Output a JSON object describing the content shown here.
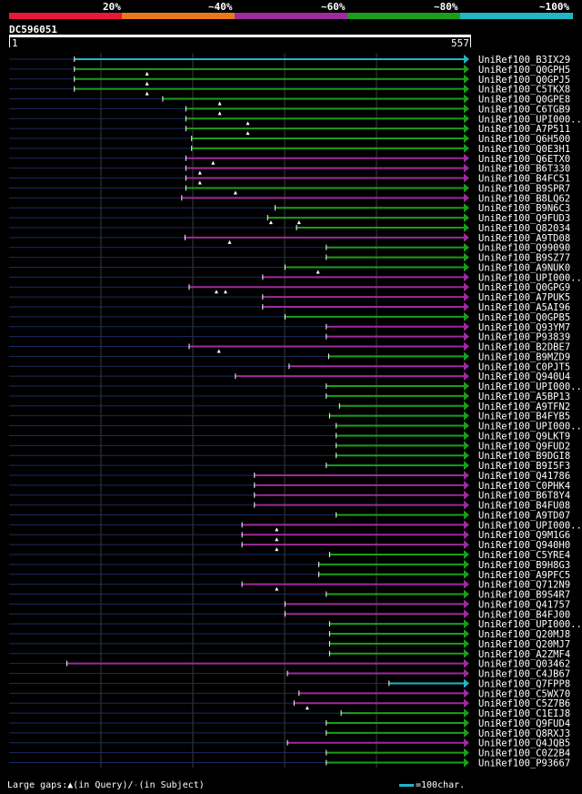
{
  "query_id": "DC596051",
  "legend": {
    "labels": [
      "20%",
      "~40%",
      "~60%",
      "~80%",
      "~100%"
    ],
    "colors": [
      "#e8183c",
      "#e8791b",
      "#9c2b9c",
      "#1a9e1a",
      "#21b6c4"
    ]
  },
  "ruler": {
    "start_label": "1",
    "end_label": "557"
  },
  "footer": {
    "large_gaps_label": "Large gaps:",
    "query_marker_label": "(in Query)/",
    "subject_marker_label": "(in Subject)",
    "scale_label": "=100char."
  },
  "chart_data": {
    "type": "alignment_coverage",
    "query_length": 557,
    "x_range": [
      1,
      557
    ],
    "hits": [
      {
        "label": "UniRef100_B3IX29",
        "start": 80,
        "end": 557,
        "color": "#21b6c4"
      },
      {
        "label": "UniRef100_Q0GPH5",
        "start": 80,
        "end": 557,
        "color": "#1a9e1a"
      },
      {
        "label": "UniRef100_Q0GPJ5",
        "start": 80,
        "end": 557,
        "color": "#1a9e1a"
      },
      {
        "label": "UniRef100_C5TKX8",
        "start": 80,
        "end": 557,
        "color": "#1a9e1a"
      },
      {
        "label": "UniRef100_Q0GPE8",
        "start": 187,
        "end": 557,
        "color": "#1a9e1a"
      },
      {
        "label": "UniRef100_C6TGB9",
        "start": 215,
        "end": 557,
        "color": "#1a9e1a"
      },
      {
        "label": "UniRef100_UPI000..",
        "start": 215,
        "end": 557,
        "color": "#1a9e1a"
      },
      {
        "label": "UniRef100_A7P511",
        "start": 215,
        "end": 557,
        "color": "#1a9e1a"
      },
      {
        "label": "UniRef100_Q6H500",
        "start": 222,
        "end": 557,
        "color": "#1a9e1a"
      },
      {
        "label": "UniRef100_Q0E3H1",
        "start": 222,
        "end": 557,
        "color": "#1a9e1a"
      },
      {
        "label": "UniRef100_Q6ETX0",
        "start": 215,
        "end": 557,
        "color": "#9c2b9c"
      },
      {
        "label": "UniRef100_B6T330",
        "start": 215,
        "end": 557,
        "color": "#9c2b9c"
      },
      {
        "label": "UniRef100_B4FC51",
        "start": 215,
        "end": 557,
        "color": "#9c2b9c"
      },
      {
        "label": "UniRef100_B9SPR7",
        "start": 215,
        "end": 557,
        "color": "#1a9e1a"
      },
      {
        "label": "UniRef100_B8LQ62",
        "start": 210,
        "end": 557,
        "color": "#9c2b9c"
      },
      {
        "label": "UniRef100_B9N6C3",
        "start": 323,
        "end": 557,
        "color": "#1a9e1a"
      },
      {
        "label": "UniRef100_Q9FUD3",
        "start": 314,
        "end": 557,
        "color": "#1a9e1a"
      },
      {
        "label": "UniRef100_Q82034",
        "start": 349,
        "end": 557,
        "color": "#1a9e1a"
      },
      {
        "label": "UniRef100_A9TD08",
        "start": 214,
        "end": 557,
        "color": "#9c2b9c"
      },
      {
        "label": "UniRef100_Q99090",
        "start": 385,
        "end": 557,
        "color": "#1a9e1a"
      },
      {
        "label": "UniRef100_B9SZ77",
        "start": 385,
        "end": 557,
        "color": "#1a9e1a"
      },
      {
        "label": "UniRef100_A9NUK0",
        "start": 335,
        "end": 557,
        "color": "#1a9e1a"
      },
      {
        "label": "UniRef100_UPI000..",
        "start": 308,
        "end": 557,
        "color": "#9c2b9c"
      },
      {
        "label": "UniRef100_Q0GPG9",
        "start": 219,
        "end": 557,
        "color": "#9c2b9c"
      },
      {
        "label": "UniRef100_A7PUK5",
        "start": 308,
        "end": 557,
        "color": "#9c2b9c"
      },
      {
        "label": "UniRef100_A5AI96",
        "start": 308,
        "end": 557,
        "color": "#9c2b9c"
      },
      {
        "label": "UniRef100_Q0GPB5",
        "start": 335,
        "end": 557,
        "color": "#1a9e1a"
      },
      {
        "label": "UniRef100_Q93YM7",
        "start": 385,
        "end": 557,
        "color": "#9c2b9c"
      },
      {
        "label": "UniRef100_P93839",
        "start": 385,
        "end": 557,
        "color": "#9c2b9c"
      },
      {
        "label": "UniRef100_B2DBE7",
        "start": 219,
        "end": 557,
        "color": "#9c2b9c"
      },
      {
        "label": "UniRef100_B9MZD9",
        "start": 388,
        "end": 557,
        "color": "#1a9e1a"
      },
      {
        "label": "UniRef100_C0PJT5",
        "start": 340,
        "end": 557,
        "color": "#9c2b9c"
      },
      {
        "label": "UniRef100_Q940U4",
        "start": 275,
        "end": 557,
        "color": "#9c2b9c"
      },
      {
        "label": "UniRef100_UPI000..",
        "start": 385,
        "end": 557,
        "color": "#1a9e1a"
      },
      {
        "label": "UniRef100_A5BP13",
        "start": 385,
        "end": 557,
        "color": "#1a9e1a"
      },
      {
        "label": "UniRef100_A9TFN2",
        "start": 401,
        "end": 557,
        "color": "#1a9e1a"
      },
      {
        "label": "UniRef100_B4FYB5",
        "start": 389,
        "end": 557,
        "color": "#1a9e1a"
      },
      {
        "label": "UniRef100_UPI000..",
        "start": 397,
        "end": 557,
        "color": "#1a9e1a"
      },
      {
        "label": "UniRef100_Q9LKT9",
        "start": 397,
        "end": 557,
        "color": "#1a9e1a"
      },
      {
        "label": "UniRef100_Q9FUD2",
        "start": 397,
        "end": 557,
        "color": "#1a9e1a"
      },
      {
        "label": "UniRef100_B9DGI8",
        "start": 397,
        "end": 557,
        "color": "#1a9e1a"
      },
      {
        "label": "UniRef100_B9I5F3",
        "start": 385,
        "end": 557,
        "color": "#1a9e1a"
      },
      {
        "label": "UniRef100_Q41786",
        "start": 298,
        "end": 557,
        "color": "#9c2b9c"
      },
      {
        "label": "UniRef100_C0PHK4",
        "start": 298,
        "end": 557,
        "color": "#9c2b9c"
      },
      {
        "label": "UniRef100_B6T8Y4",
        "start": 298,
        "end": 557,
        "color": "#9c2b9c"
      },
      {
        "label": "UniRef100_B4FU08",
        "start": 298,
        "end": 557,
        "color": "#9c2b9c"
      },
      {
        "label": "UniRef100_A9TD07",
        "start": 397,
        "end": 557,
        "color": "#1a9e1a"
      },
      {
        "label": "UniRef100_UPI000..",
        "start": 283,
        "end": 557,
        "color": "#9c2b9c"
      },
      {
        "label": "UniRef100_Q9M1G6",
        "start": 283,
        "end": 557,
        "color": "#9c2b9c"
      },
      {
        "label": "UniRef100_Q940H0",
        "start": 283,
        "end": 557,
        "color": "#9c2b9c"
      },
      {
        "label": "UniRef100_C5YRE4",
        "start": 389,
        "end": 557,
        "color": "#1a9e1a"
      },
      {
        "label": "UniRef100_B9H8G3",
        "start": 376,
        "end": 557,
        "color": "#1a9e1a"
      },
      {
        "label": "UniRef100_A9PFC5",
        "start": 376,
        "end": 557,
        "color": "#1a9e1a"
      },
      {
        "label": "UniRef100_Q712N9",
        "start": 283,
        "end": 557,
        "color": "#9c2b9c"
      },
      {
        "label": "UniRef100_B9S4R7",
        "start": 385,
        "end": 557,
        "color": "#1a9e1a"
      },
      {
        "label": "UniRef100_Q41757",
        "start": 335,
        "end": 557,
        "color": "#9c2b9c"
      },
      {
        "label": "UniRef100_B4FJ00",
        "start": 335,
        "end": 557,
        "color": "#9c2b9c"
      },
      {
        "label": "UniRef100_UPI000..",
        "start": 389,
        "end": 557,
        "color": "#1a9e1a"
      },
      {
        "label": "UniRef100_Q20MJ8",
        "start": 389,
        "end": 557,
        "color": "#1a9e1a"
      },
      {
        "label": "UniRef100_Q20MJ7",
        "start": 389,
        "end": 557,
        "color": "#1a9e1a"
      },
      {
        "label": "UniRef100_A2ZMF4",
        "start": 389,
        "end": 557,
        "color": "#1a9e1a"
      },
      {
        "label": "UniRef100_Q03462",
        "start": 71,
        "end": 557,
        "color": "#9c2b9c"
      },
      {
        "label": "UniRef100_C4JB67",
        "start": 338,
        "end": 557,
        "color": "#9c2b9c"
      },
      {
        "label": "UniRef100_Q7FPP8",
        "start": 461,
        "end": 557,
        "color": "#21b6c4"
      },
      {
        "label": "UniRef100_C5WX70",
        "start": 352,
        "end": 557,
        "color": "#9c2b9c"
      },
      {
        "label": "UniRef100_C5Z7B6",
        "start": 346,
        "end": 557,
        "color": "#9c2b9c"
      },
      {
        "label": "UniRef100_C1EIJ8",
        "start": 403,
        "end": 557,
        "color": "#1a9e1a"
      },
      {
        "label": "UniRef100_Q9FUD4",
        "start": 385,
        "end": 557,
        "color": "#1a9e1a"
      },
      {
        "label": "UniRef100_Q8RXJ3",
        "start": 385,
        "end": 557,
        "color": "#1a9e1a"
      },
      {
        "label": "UniRef100_Q4JQB5",
        "start": 338,
        "end": 557,
        "color": "#9c2b9c"
      },
      {
        "label": "UniRef100_C0Z2B4",
        "start": 385,
        "end": 557,
        "color": "#1a9e1a"
      },
      {
        "label": "UniRef100_P93667",
        "start": 385,
        "end": 557,
        "color": "#1a9e1a"
      }
    ],
    "query_gap_markers": [
      {
        "row": 1,
        "pos": 168
      },
      {
        "row": 2,
        "pos": 168
      },
      {
        "row": 3,
        "pos": 168
      },
      {
        "row": 4,
        "pos": 256
      },
      {
        "row": 5,
        "pos": 256
      },
      {
        "row": 6,
        "pos": 290
      },
      {
        "row": 7,
        "pos": 290
      },
      {
        "row": 10,
        "pos": 248
      },
      {
        "row": 11,
        "pos": 232
      },
      {
        "row": 12,
        "pos": 232
      },
      {
        "row": 13,
        "pos": 275
      },
      {
        "row": 16,
        "pos": 318
      },
      {
        "row": 16,
        "pos": 352
      },
      {
        "row": 18,
        "pos": 268
      },
      {
        "row": 21,
        "pos": 375
      },
      {
        "row": 23,
        "pos": 252
      },
      {
        "row": 23,
        "pos": 263
      },
      {
        "row": 29,
        "pos": 255
      },
      {
        "row": 47,
        "pos": 325
      },
      {
        "row": 48,
        "pos": 325
      },
      {
        "row": 49,
        "pos": 325
      },
      {
        "row": 53,
        "pos": 325
      },
      {
        "row": 65,
        "pos": 362
      }
    ]
  }
}
